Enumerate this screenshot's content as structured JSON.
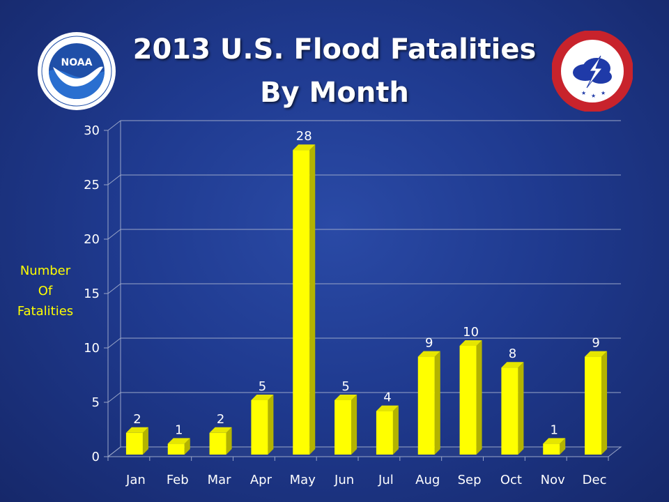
{
  "title": {
    "line1": "2013 U.S. Flood Fatalities",
    "line2": "By Month"
  },
  "logos": {
    "left": {
      "text": "NOAA",
      "ring_text": "NATIONAL OCEANIC AND ATMOSPHERIC ADMINISTRATION · U.S. DEPARTMENT OF COMMERCE"
    },
    "right": {
      "ring_text": "NATIONAL WEATHER SERVICE"
    }
  },
  "colors": {
    "bar": "#ffff00",
    "bar_side": "#b3b300",
    "bar_top": "#e6e600",
    "grid": "#9aa6c8",
    "label_yellow": "#ffff00"
  },
  "chart_data": {
    "type": "bar",
    "categories": [
      "Jan",
      "Feb",
      "Mar",
      "Apr",
      "May",
      "Jun",
      "Jul",
      "Aug",
      "Sep",
      "Oct",
      "Nov",
      "Dec"
    ],
    "values": [
      2,
      1,
      2,
      5,
      28,
      5,
      4,
      9,
      10,
      8,
      1,
      9
    ],
    "title": "2013 U.S. Flood Fatalities By Month",
    "xlabel": "",
    "ylabel": "Number Of Fatalities",
    "ylabel_lines": [
      "Number",
      "Of",
      "Fatalities"
    ],
    "ylim": [
      0,
      30
    ],
    "yticks": [
      0,
      5,
      10,
      15,
      20,
      25,
      30
    ],
    "grid": true,
    "legend": "none",
    "data_labels": true,
    "style": "3d-column"
  }
}
